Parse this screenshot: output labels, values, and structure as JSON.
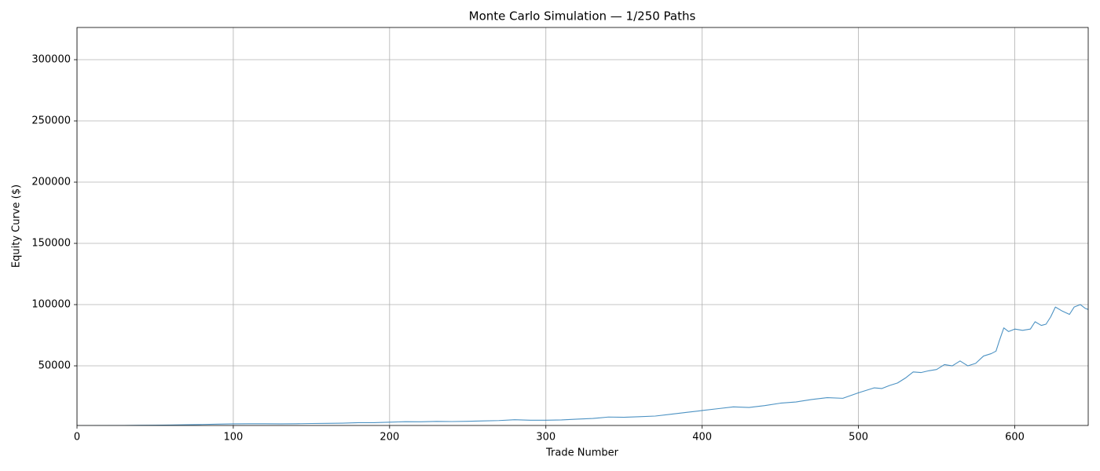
{
  "chart_data": {
    "type": "line",
    "title": "Monte Carlo Simulation — 1/250 Paths",
    "x_label": "Trade Number",
    "y_label": "Equity Curve ($)",
    "grid": true,
    "xlim": [
      0,
      647
    ],
    "xticks": [
      0,
      100,
      200,
      300,
      400,
      500,
      600
    ],
    "ylim": [
      1300,
      326300
    ],
    "yticks": [
      50000,
      100000,
      150000,
      200000,
      250000,
      300000
    ],
    "x": [
      0,
      10,
      20,
      30,
      40,
      50,
      60,
      70,
      80,
      90,
      100,
      110,
      120,
      130,
      140,
      150,
      160,
      170,
      180,
      190,
      200,
      210,
      220,
      230,
      240,
      250,
      260,
      270,
      280,
      290,
      300,
      310,
      320,
      330,
      340,
      350,
      360,
      370,
      380,
      390,
      400,
      410,
      420,
      430,
      440,
      450,
      460,
      470,
      480,
      490,
      500,
      510,
      515,
      520,
      525,
      530,
      535,
      540,
      545,
      550,
      555,
      560,
      565,
      570,
      575,
      580,
      585,
      588,
      590,
      593,
      596,
      600,
      605,
      610,
      613,
      617,
      620,
      623,
      626,
      630,
      635,
      638,
      642,
      645,
      647
    ],
    "series": [
      {
        "color": "#1f77b4",
        "values": [
          1000,
          1100,
          1200,
          1300,
          1400,
          1500,
          1700,
          1900,
          2100,
          2400,
          2600,
          2700,
          2700,
          2600,
          2700,
          2900,
          3000,
          3200,
          3600,
          3600,
          4000,
          4400,
          4300,
          4600,
          4500,
          4700,
          5000,
          5300,
          6000,
          5600,
          5600,
          5800,
          6500,
          7000,
          8200,
          8000,
          8500,
          9000,
          10500,
          12000,
          13500,
          15000,
          16500,
          16000,
          17500,
          19500,
          20500,
          22500,
          24000,
          23500,
          28000,
          32000,
          31500,
          34000,
          36000,
          40000,
          45000,
          44500,
          46000,
          47000,
          51000,
          50000,
          54000,
          50000,
          52000,
          58000,
          60000,
          62000,
          70000,
          81000,
          78000,
          80000,
          79000,
          80000,
          86000,
          83000,
          84000,
          90000,
          98000,
          95000,
          92000,
          98000,
          100000,
          97000,
          96000
        ]
      }
    ]
  }
}
